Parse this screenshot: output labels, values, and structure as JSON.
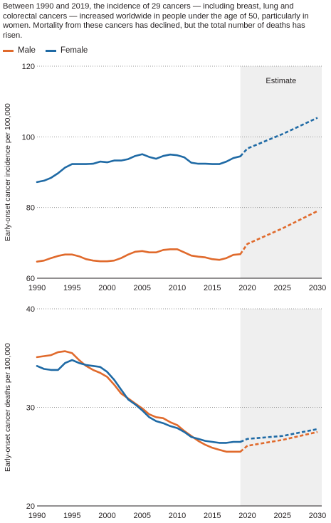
{
  "intro_text": "Between 1990 and 2019, the incidence of 29 cancers — including breast, lung and colorectal cancers — increased worldwide in people under the age of 50, particularly in women. Mortality from these cancers has declined, but the total number of deaths has risen.",
  "legend": [
    {
      "label": "Male",
      "color": "#e06a2c"
    },
    {
      "label": "Female",
      "color": "#1f6aa5"
    }
  ],
  "colors": {
    "male": "#e06a2c",
    "female": "#1f6aa5",
    "estimate_shade": "#efefef"
  },
  "chart_data": [
    {
      "type": "line",
      "ylabel": "Early-onset cancer incidence per 100,000",
      "xlim": [
        1990,
        2030
      ],
      "ylim": [
        60,
        120
      ],
      "x_ticks": [
        1990,
        1995,
        2000,
        2005,
        2010,
        2015,
        2020,
        2025,
        2030
      ],
      "y_ticks": [
        60,
        80,
        100,
        120
      ],
      "grid": "horizontal dotted",
      "estimate": {
        "label": "Estimate",
        "from": 2019,
        "to": 2030
      },
      "series": [
        {
          "name": "Male",
          "observed": {
            "x": [
              1990,
              1991,
              1992,
              1993,
              1994,
              1995,
              1996,
              1997,
              1998,
              1999,
              2000,
              2001,
              2002,
              2003,
              2004,
              2005,
              2006,
              2007,
              2008,
              2009,
              2010,
              2011,
              2012,
              2013,
              2014,
              2015,
              2016,
              2017,
              2018,
              2019
            ],
            "y": [
              64.7,
              65.0,
              65.7,
              66.3,
              66.7,
              66.7,
              66.2,
              65.4,
              65.0,
              64.8,
              64.8,
              65.0,
              65.7,
              66.7,
              67.5,
              67.7,
              67.3,
              67.3,
              68.0,
              68.2,
              68.2,
              67.3,
              66.4,
              66.1,
              65.9,
              65.4,
              65.2,
              65.7,
              66.6,
              66.8
            ]
          },
          "estimate": {
            "x": [
              2019,
              2020,
              2025,
              2030
            ],
            "y": [
              66.8,
              69.7,
              74.1,
              79.0
            ]
          }
        },
        {
          "name": "Female",
          "observed": {
            "x": [
              1990,
              1991,
              1992,
              1993,
              1994,
              1995,
              1996,
              1997,
              1998,
              1999,
              2000,
              2001,
              2002,
              2003,
              2004,
              2005,
              2006,
              2007,
              2008,
              2009,
              2010,
              2011,
              2012,
              2013,
              2014,
              2015,
              2016,
              2017,
              2018,
              2019
            ],
            "y": [
              87.2,
              87.6,
              88.4,
              89.7,
              91.3,
              92.3,
              92.3,
              92.3,
              92.4,
              93.0,
              92.8,
              93.3,
              93.3,
              93.7,
              94.6,
              95.1,
              94.3,
              93.8,
              94.6,
              95.0,
              94.8,
              94.2,
              92.7,
              92.4,
              92.4,
              92.3,
              92.3,
              93.0,
              94.0,
              94.5
            ]
          },
          "estimate": {
            "x": [
              2019,
              2020,
              2025,
              2030
            ],
            "y": [
              94.5,
              96.7,
              100.8,
              105.4
            ]
          }
        }
      ]
    },
    {
      "type": "line",
      "ylabel": "Early-onset cancer deaths per 100,000",
      "xlim": [
        1990,
        2030
      ],
      "ylim": [
        20,
        40
      ],
      "x_ticks": [
        1990,
        1995,
        2000,
        2005,
        2010,
        2015,
        2020,
        2025,
        2030
      ],
      "y_ticks": [
        20,
        30,
        40
      ],
      "grid": "horizontal dotted",
      "estimate": {
        "label": "",
        "from": 2019,
        "to": 2030
      },
      "series": [
        {
          "name": "Male",
          "observed": {
            "x": [
              1990,
              1991,
              1992,
              1993,
              1994,
              1995,
              1996,
              1997,
              1998,
              1999,
              2000,
              2001,
              2002,
              2003,
              2004,
              2005,
              2006,
              2007,
              2008,
              2009,
              2010,
              2011,
              2012,
              2013,
              2014,
              2015,
              2016,
              2017,
              2018,
              2019
            ],
            "y": [
              35.1,
              35.2,
              35.3,
              35.6,
              35.7,
              35.5,
              34.8,
              34.2,
              33.8,
              33.5,
              33.1,
              32.3,
              31.4,
              30.9,
              30.4,
              29.9,
              29.3,
              29.0,
              28.9,
              28.5,
              28.2,
              27.6,
              27.1,
              26.6,
              26.2,
              25.9,
              25.7,
              25.5,
              25.5,
              25.5
            ]
          },
          "estimate": {
            "x": [
              2019,
              2020,
              2025,
              2030
            ],
            "y": [
              25.5,
              26.1,
              26.7,
              27.5
            ]
          }
        },
        {
          "name": "Female",
          "observed": {
            "x": [
              1990,
              1991,
              1992,
              1993,
              1994,
              1995,
              1996,
              1997,
              1998,
              1999,
              2000,
              2001,
              2002,
              2003,
              2004,
              2005,
              2006,
              2007,
              2008,
              2009,
              2010,
              2011,
              2012,
              2013,
              2014,
              2015,
              2016,
              2017,
              2018,
              2019
            ],
            "y": [
              34.2,
              33.9,
              33.8,
              33.8,
              34.5,
              34.8,
              34.5,
              34.3,
              34.2,
              34.1,
              33.6,
              32.8,
              31.8,
              30.8,
              30.3,
              29.7,
              29.0,
              28.6,
              28.4,
              28.1,
              27.9,
              27.5,
              27.0,
              26.8,
              26.6,
              26.5,
              26.4,
              26.4,
              26.5,
              26.5
            ]
          },
          "estimate": {
            "x": [
              2019,
              2020,
              2025,
              2030
            ],
            "y": [
              26.5,
              26.8,
              27.1,
              27.8
            ]
          }
        }
      ]
    }
  ]
}
